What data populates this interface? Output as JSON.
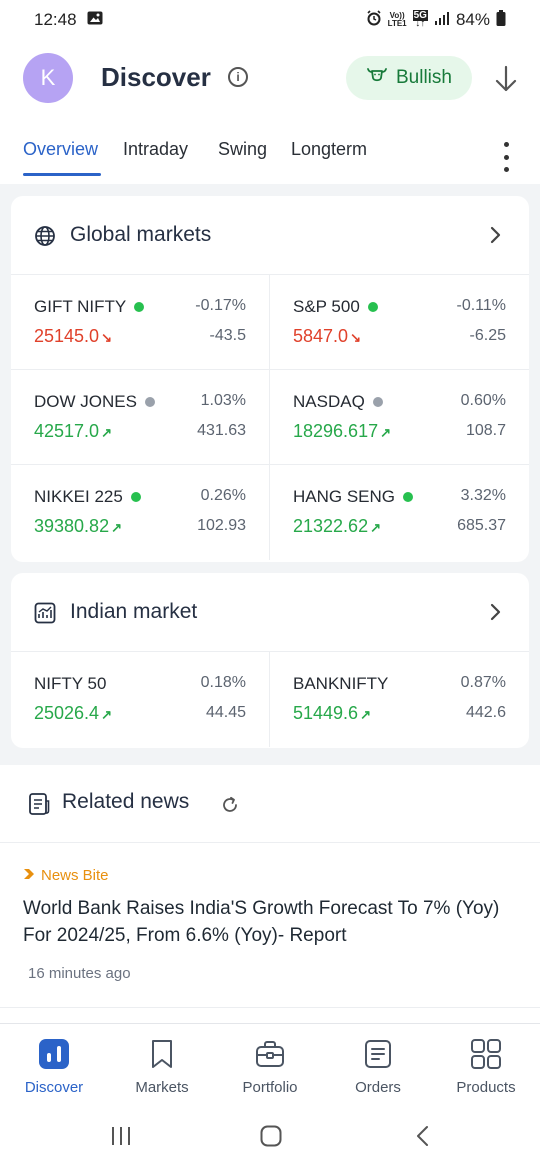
{
  "status_bar": {
    "time": "12:48",
    "battery": "84%",
    "network_top": "Vo))",
    "network_bottom": "LTE1",
    "gen": "5G"
  },
  "header": {
    "avatar_letter": "K",
    "title": "Discover",
    "sentiment_label": "Bullish"
  },
  "tabs": [
    {
      "label": "Overview",
      "active": true
    },
    {
      "label": "Intraday"
    },
    {
      "label": "Swing"
    },
    {
      "label": "Longterm"
    }
  ],
  "global_markets": {
    "title": "Global markets",
    "items": [
      {
        "name": "GIFT NIFTY",
        "status": "open",
        "price": "25145.0",
        "trend": "down",
        "pct": "-0.17%",
        "change": "-43.5"
      },
      {
        "name": "S&P 500",
        "status": "open",
        "price": "5847.0",
        "trend": "down",
        "pct": "-0.11%",
        "change": "-6.25"
      },
      {
        "name": "DOW JONES",
        "status": "closed",
        "price": "42517.0",
        "trend": "up",
        "pct": "1.03%",
        "change": "431.63"
      },
      {
        "name": "NASDAQ",
        "status": "closed",
        "price": "18296.617",
        "trend": "up",
        "pct": "0.60%",
        "change": "108.7"
      },
      {
        "name": "NIKKEI 225",
        "status": "open",
        "price": "39380.82",
        "trend": "up",
        "pct": "0.26%",
        "change": "102.93"
      },
      {
        "name": "HANG SENG",
        "status": "open",
        "price": "21322.62",
        "trend": "up",
        "pct": "3.32%",
        "change": "685.37"
      }
    ]
  },
  "indian_market": {
    "title": "Indian market",
    "items": [
      {
        "name": "NIFTY 50",
        "price": "25026.4",
        "trend": "up",
        "pct": "0.18%",
        "change": "44.45"
      },
      {
        "name": "BANKNIFTY",
        "price": "51449.6",
        "trend": "up",
        "pct": "0.87%",
        "change": "442.6"
      }
    ]
  },
  "news": {
    "title": "Related news",
    "items": [
      {
        "tag": "News Bite",
        "headline": "World Bank Raises India'S Growth Forecast To 7% (Yoy) For 2024/25, From 6.6% (Yoy)- Report",
        "time": "16 minutes ago"
      }
    ]
  },
  "bottom_nav": [
    {
      "label": "Discover",
      "icon": "chart-bars-icon",
      "active": true
    },
    {
      "label": "Markets",
      "icon": "bookmark-icon"
    },
    {
      "label": "Portfolio",
      "icon": "briefcase-icon"
    },
    {
      "label": "Orders",
      "icon": "receipt-icon"
    },
    {
      "label": "Products",
      "icon": "grid-icon"
    }
  ],
  "colors": {
    "accent": "#2b63c8",
    "up": "#27a84a",
    "down": "#e0412b",
    "open_dot": "#27c04f",
    "closed_dot": "#9aa1ab",
    "bullish_bg": "#e6f7ea",
    "news_tag": "#e8900f"
  }
}
